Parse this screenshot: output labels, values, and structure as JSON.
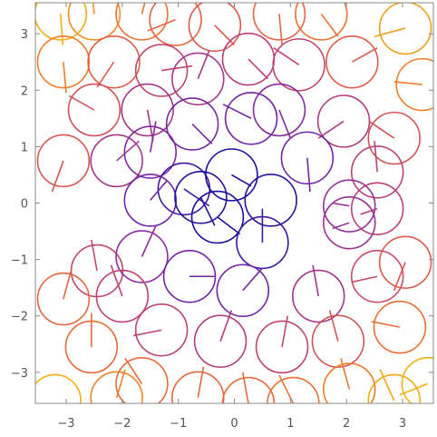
{
  "chart_data": {
    "type": "scatter",
    "title": "",
    "xlabel": "",
    "ylabel": "",
    "xlim": [
      -3.55,
      3.55
    ],
    "ylim": [
      -3.55,
      3.55
    ],
    "grid": false,
    "x_ticks": [
      -3,
      -2,
      -1,
      0,
      1,
      2,
      3
    ],
    "x_tick_labels": [
      "−3",
      "−2",
      "−1",
      "0",
      "1",
      "2",
      "3"
    ],
    "y_ticks": [
      3,
      2,
      1,
      0,
      -1,
      -2,
      -3
    ],
    "y_tick_labels": [
      "3",
      "2",
      "1",
      "0",
      "−1",
      "−2",
      "−3"
    ],
    "circle_radius": 0.46,
    "color_scale": [
      "#1a0f9c",
      "#5a1ea8",
      "#8a2aa0",
      "#b8407a",
      "#dd5a4a",
      "#f07a2a",
      "#f5b010"
    ],
    "color_measure": "distance from origin",
    "series": [
      {
        "points": [
          {
            "x": -3.1,
            "y": 3.35,
            "dx": 0.04,
            "dy": -0.55
          },
          {
            "x": -2.5,
            "y": 3.35,
            "dx": -0.05,
            "dy": 0.5
          },
          {
            "x": -1.65,
            "y": 3.35,
            "dx": 0.12,
            "dy": 0.45
          },
          {
            "x": -1.05,
            "y": 3.25,
            "dx": -0.5,
            "dy": -0.2
          },
          {
            "x": -0.35,
            "y": 3.15,
            "dx": 0.35,
            "dy": -0.35
          },
          {
            "x": 0.8,
            "y": 3.35,
            "dx": 0.05,
            "dy": -0.55
          },
          {
            "x": 1.55,
            "y": 3.35,
            "dx": 0.3,
            "dy": -0.4
          },
          {
            "x": 3.05,
            "y": 3.1,
            "dx": -0.55,
            "dy": -0.15
          },
          {
            "x": -3.05,
            "y": 2.5,
            "dx": 0.05,
            "dy": -0.55
          },
          {
            "x": -2.15,
            "y": 2.5,
            "dx": -0.3,
            "dy": -0.45
          },
          {
            "x": -1.3,
            "y": 2.35,
            "dx": 0.55,
            "dy": 0.08
          },
          {
            "x": -0.65,
            "y": 2.2,
            "dx": 0.2,
            "dy": 0.5
          },
          {
            "x": 0.25,
            "y": 2.55,
            "dx": 0.35,
            "dy": -0.35
          },
          {
            "x": 1.15,
            "y": 2.45,
            "dx": -0.45,
            "dy": 0.3
          },
          {
            "x": 2.1,
            "y": 2.5,
            "dx": 0.45,
            "dy": 0.25
          },
          {
            "x": 3.35,
            "y": 2.1,
            "dx": -0.5,
            "dy": 0.05
          },
          {
            "x": -2.5,
            "y": 1.65,
            "dx": -0.45,
            "dy": 0.25
          },
          {
            "x": -1.55,
            "y": 1.65,
            "dx": 0.1,
            "dy": -0.55
          },
          {
            "x": -0.75,
            "y": 1.4,
            "dx": 0.35,
            "dy": -0.35
          },
          {
            "x": 0.3,
            "y": 1.5,
            "dx": -0.5,
            "dy": 0.25
          },
          {
            "x": 0.8,
            "y": 1.65,
            "dx": 0.2,
            "dy": -0.5
          },
          {
            "x": 1.95,
            "y": 1.45,
            "dx": -0.45,
            "dy": -0.3
          },
          {
            "x": 2.85,
            "y": 1.15,
            "dx": -0.45,
            "dy": 0.3
          },
          {
            "x": -3.05,
            "y": 0.75,
            "dx": -0.2,
            "dy": -0.55
          },
          {
            "x": -2.1,
            "y": 0.75,
            "dx": 0.4,
            "dy": 0.35
          },
          {
            "x": -1.5,
            "y": 0.9,
            "dx": 0.1,
            "dy": 0.55
          },
          {
            "x": -0.9,
            "y": 0.25,
            "dx": 0.45,
            "dy": -0.3
          },
          {
            "x": 0.65,
            "y": 0.05,
            "dx": 0.0,
            "dy": 0.0
          },
          {
            "x": 1.3,
            "y": 0.8,
            "dx": 0.05,
            "dy": -0.6
          },
          {
            "x": 2.55,
            "y": 0.55,
            "dx": -0.05,
            "dy": 0.55
          },
          {
            "x": -1.5,
            "y": 0.05,
            "dx": 0.3,
            "dy": 0.35
          },
          {
            "x": -0.6,
            "y": 0.1,
            "dx": 0.25,
            "dy": -0.5
          },
          {
            "x": -0.05,
            "y": 0.5,
            "dx": 0.35,
            "dy": -0.2
          },
          {
            "x": -0.3,
            "y": -0.25,
            "dx": 0.4,
            "dy": -0.3
          },
          {
            "x": 2.05,
            "y": -0.05,
            "dx": -0.3,
            "dy": 0.05
          },
          {
            "x": 2.55,
            "y": -0.1,
            "dx": -0.3,
            "dy": -0.1
          },
          {
            "x": 2.05,
            "y": -0.35,
            "dx": -0.3,
            "dy": -0.1
          },
          {
            "x": 0.5,
            "y": -0.7,
            "dx": 0.0,
            "dy": 0.6
          },
          {
            "x": -2.45,
            "y": -1.2,
            "dx": -0.1,
            "dy": 0.55
          },
          {
            "x": -1.65,
            "y": -0.95,
            "dx": 0.25,
            "dy": 0.55
          },
          {
            "x": -2.0,
            "y": -1.65,
            "dx": -0.2,
            "dy": 0.55
          },
          {
            "x": -3.05,
            "y": -1.7,
            "dx": 0.15,
            "dy": 0.55
          },
          {
            "x": -0.8,
            "y": -1.3,
            "dx": 0.45,
            "dy": 0.0
          },
          {
            "x": 0.15,
            "y": -1.55,
            "dx": 0.35,
            "dy": 0.4
          },
          {
            "x": 1.5,
            "y": -1.65,
            "dx": -0.1,
            "dy": 0.55
          },
          {
            "x": 2.55,
            "y": -1.3,
            "dx": -0.45,
            "dy": -0.1
          },
          {
            "x": 3.05,
            "y": -1.05,
            "dx": -0.2,
            "dy": -0.5
          },
          {
            "x": -2.55,
            "y": -2.55,
            "dx": 0.0,
            "dy": 0.6
          },
          {
            "x": -1.3,
            "y": -2.25,
            "dx": -0.5,
            "dy": -0.1
          },
          {
            "x": -0.25,
            "y": -2.45,
            "dx": 0.2,
            "dy": 0.55
          },
          {
            "x": 0.85,
            "y": -2.55,
            "dx": 0.1,
            "dy": 0.55
          },
          {
            "x": 1.85,
            "y": -2.45,
            "dx": -0.15,
            "dy": 0.55
          },
          {
            "x": 2.95,
            "y": -2.2,
            "dx": -0.5,
            "dy": 0.1
          },
          {
            "x": -3.2,
            "y": -3.5,
            "dx": 0.0,
            "dy": 0.0
          },
          {
            "x": -2.1,
            "y": -3.45,
            "dx": 0.15,
            "dy": 0.5
          },
          {
            "x": -1.65,
            "y": -3.2,
            "dx": -0.3,
            "dy": 0.45
          },
          {
            "x": -0.65,
            "y": -3.45,
            "dx": 0.1,
            "dy": 0.55
          },
          {
            "x": 0.25,
            "y": -3.55,
            "dx": -0.1,
            "dy": 0.55
          },
          {
            "x": 1.05,
            "y": -3.55,
            "dx": -0.25,
            "dy": 0.5
          },
          {
            "x": 2.05,
            "y": -3.3,
            "dx": -0.15,
            "dy": 0.55
          },
          {
            "x": 2.85,
            "y": -3.5,
            "dx": -0.25,
            "dy": 0.55
          },
          {
            "x": 3.45,
            "y": -3.2,
            "dx": -0.5,
            "dy": -0.2
          }
        ]
      }
    ]
  }
}
